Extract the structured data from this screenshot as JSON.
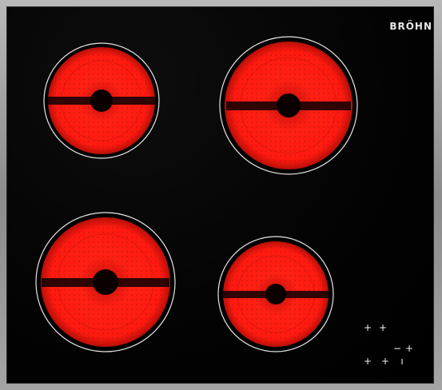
{
  "brand": {
    "label": "BRÖHN"
  },
  "cooktop": {
    "glass_color": "#000000",
    "zone_color": "#ff1a10",
    "zone_ring_color": "#e6e6e6"
  },
  "zones": [
    {
      "name": "rear-left"
    },
    {
      "name": "rear-right"
    },
    {
      "name": "front-left"
    },
    {
      "name": "front-right"
    }
  ],
  "touch_controls": {
    "icons": [
      "plus-icon",
      "plus-icon",
      "plus-icon",
      "plus-icon",
      "minus-icon",
      "plus-icon",
      "timer-icon"
    ]
  }
}
